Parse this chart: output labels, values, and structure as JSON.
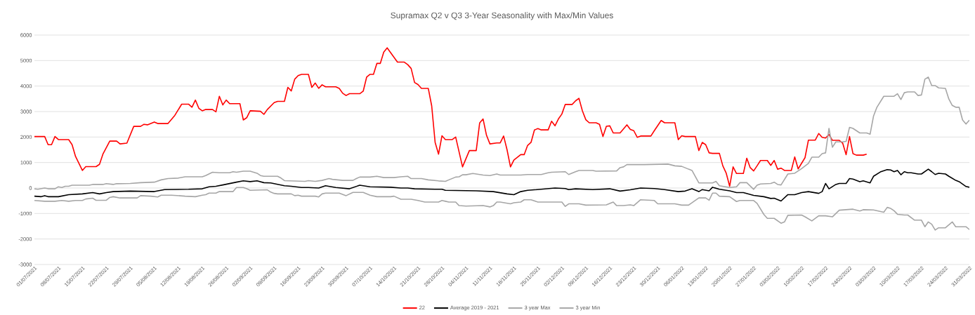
{
  "chart_data": {
    "type": "line",
    "title": "Supramax Q2 v Q3 3-Year Seasonality with Max/Min Values",
    "xlim": [
      "2021-07-01",
      "2022-03-31"
    ],
    "xticks": [
      {
        "value": "2021-07-01",
        "label": "01/07/2021"
      },
      {
        "value": "2021-07-08",
        "label": "08/07/2021"
      },
      {
        "value": "2021-07-15",
        "label": "15/07/2021"
      },
      {
        "value": "2021-07-22",
        "label": "22/07/2021"
      },
      {
        "value": "2021-07-29",
        "label": "29/07/2021"
      },
      {
        "value": "2021-08-05",
        "label": "05/08/2021"
      },
      {
        "value": "2021-08-12",
        "label": "12/08/2021"
      },
      {
        "value": "2021-08-19",
        "label": "19/08/2021"
      },
      {
        "value": "2021-08-26",
        "label": "26/08/2021"
      },
      {
        "value": "2021-09-02",
        "label": "02/09/2021"
      },
      {
        "value": "2021-09-09",
        "label": "09/09/2021"
      },
      {
        "value": "2021-09-16",
        "label": "16/09/2021"
      },
      {
        "value": "2021-09-23",
        "label": "23/09/2021"
      },
      {
        "value": "2021-09-30",
        "label": "30/09/2021"
      },
      {
        "value": "2021-10-07",
        "label": "07/10/2021"
      },
      {
        "value": "2021-10-14",
        "label": "14/10/2021"
      },
      {
        "value": "2021-10-21",
        "label": "21/10/2021"
      },
      {
        "value": "2021-10-28",
        "label": "28/10/2021"
      },
      {
        "value": "2021-11-04",
        "label": "04/11/2021"
      },
      {
        "value": "2021-11-11",
        "label": "11/11/2021"
      },
      {
        "value": "2021-11-18",
        "label": "18/11/2021"
      },
      {
        "value": "2021-11-25",
        "label": "25/11/2021"
      },
      {
        "value": "2021-12-02",
        "label": "02/12/2021"
      },
      {
        "value": "2021-12-09",
        "label": "09/12/2021"
      },
      {
        "value": "2021-12-16",
        "label": "16/12/2021"
      },
      {
        "value": "2021-12-23",
        "label": "23/12/2021"
      },
      {
        "value": "2021-12-30",
        "label": "30/12/2021"
      },
      {
        "value": "2022-01-06",
        "label": "06/01/2022"
      },
      {
        "value": "2022-01-13",
        "label": "13/01/2022"
      },
      {
        "value": "2022-01-20",
        "label": "20/01/2022"
      },
      {
        "value": "2022-01-27",
        "label": "27/01/2022"
      },
      {
        "value": "2022-02-03",
        "label": "03/02/2022"
      },
      {
        "value": "2022-02-10",
        "label": "10/02/2022"
      },
      {
        "value": "2022-02-17",
        "label": "17/02/2022"
      },
      {
        "value": "2022-02-24",
        "label": "24/02/2022"
      },
      {
        "value": "2022-03-03",
        "label": "03/03/2022"
      },
      {
        "value": "2022-03-10",
        "label": "10/03/2022"
      },
      {
        "value": "2022-03-17",
        "label": "17/03/2022"
      },
      {
        "value": "2022-03-24",
        "label": "24/03/2022"
      },
      {
        "value": "2022-03-31",
        "label": "31/03/2022"
      }
    ],
    "ylim": [
      -3000,
      6000
    ],
    "yticks": [
      -3000,
      -2000,
      -1000,
      0,
      1000,
      2000,
      3000,
      4000,
      5000,
      6000
    ],
    "grid": "y",
    "legend": "bottom",
    "marker": "none",
    "line_style": "solid",
    "series": [
      {
        "name": "22",
        "color": "#ff0000",
        "x": [
          "2021-07-01",
          "2021-07-04",
          "2021-07-05",
          "2021-07-06",
          "2021-07-07",
          "2021-07-08",
          "2021-07-11",
          "2021-07-12",
          "2021-07-13",
          "2021-07-15",
          "2021-07-16",
          "2021-07-19",
          "2021-07-20",
          "2021-07-21",
          "2021-07-23",
          "2021-07-25",
          "2021-07-26",
          "2021-07-28",
          "2021-07-30",
          "2021-08-01",
          "2021-08-02",
          "2021-08-03",
          "2021-08-05",
          "2021-08-06",
          "2021-08-09",
          "2021-08-11",
          "2021-08-13",
          "2021-08-15",
          "2021-08-16",
          "2021-08-17",
          "2021-08-18",
          "2021-08-19",
          "2021-08-20",
          "2021-08-22",
          "2021-08-23",
          "2021-08-24",
          "2021-08-25",
          "2021-08-26",
          "2021-08-27",
          "2021-08-30",
          "2021-08-31",
          "2021-09-01",
          "2021-09-02",
          "2021-09-05",
          "2021-09-06",
          "2021-09-07",
          "2021-09-09",
          "2021-09-10",
          "2021-09-12",
          "2021-09-13",
          "2021-09-14",
          "2021-09-15",
          "2021-09-16",
          "2021-09-17",
          "2021-09-19",
          "2021-09-20",
          "2021-09-21",
          "2021-09-22",
          "2021-09-23",
          "2021-09-24",
          "2021-09-27",
          "2021-09-28",
          "2021-09-29",
          "2021-09-30",
          "2021-10-01",
          "2021-10-04",
          "2021-10-05",
          "2021-10-06",
          "2021-10-07",
          "2021-10-08",
          "2021-10-09",
          "2021-10-10",
          "2021-10-11",
          "2021-10-12",
          "2021-10-15",
          "2021-10-17",
          "2021-10-18",
          "2021-10-19",
          "2021-10-20",
          "2021-10-21",
          "2021-10-22",
          "2021-10-24",
          "2021-10-25",
          "2021-10-26",
          "2021-10-27",
          "2021-10-28",
          "2021-10-29",
          "2021-10-31",
          "2021-11-01",
          "2021-11-03",
          "2021-11-05",
          "2021-11-07",
          "2021-11-08",
          "2021-11-09",
          "2021-11-10",
          "2021-11-11",
          "2021-11-13",
          "2021-11-14",
          "2021-11-15",
          "2021-11-16",
          "2021-11-17",
          "2021-11-18",
          "2021-11-20",
          "2021-11-21",
          "2021-11-22",
          "2021-11-23",
          "2021-11-24",
          "2021-11-25",
          "2021-11-26",
          "2021-11-28",
          "2021-11-29",
          "2021-11-30",
          "2021-12-01",
          "2021-12-02",
          "2021-12-03",
          "2021-12-05",
          "2021-12-06",
          "2021-12-07",
          "2021-12-08",
          "2021-12-09",
          "2021-12-10",
          "2021-12-12",
          "2021-12-13",
          "2021-12-14",
          "2021-12-15",
          "2021-12-16",
          "2021-12-17",
          "2021-12-19",
          "2021-12-21",
          "2021-12-22",
          "2021-12-23",
          "2021-12-24",
          "2021-12-25",
          "2021-12-28",
          "2021-12-29",
          "2021-12-31",
          "2022-01-01",
          "2022-01-04",
          "2022-01-05",
          "2022-01-06",
          "2022-01-07",
          "2022-01-10",
          "2022-01-11",
          "2022-01-12",
          "2022-01-13",
          "2022-01-14",
          "2022-01-15",
          "2022-01-17",
          "2022-01-18",
          "2022-01-19",
          "2022-01-20",
          "2022-01-21",
          "2022-01-22",
          "2022-01-24",
          "2022-01-25",
          "2022-01-26",
          "2022-01-27",
          "2022-01-28",
          "2022-01-29",
          "2022-01-31",
          "2022-02-01",
          "2022-02-02",
          "2022-02-03",
          "2022-02-04",
          "2022-02-05",
          "2022-02-07",
          "2022-02-08",
          "2022-02-09",
          "2022-02-10",
          "2022-02-11",
          "2022-02-12",
          "2022-02-14",
          "2022-02-15",
          "2022-02-16",
          "2022-02-17",
          "2022-02-18",
          "2022-02-19",
          "2022-02-21",
          "2022-02-22",
          "2022-02-23",
          "2022-02-24",
          "2022-02-25",
          "2022-02-26",
          "2022-02-28",
          "2022-03-01"
        ],
        "values": [
          2020,
          2020,
          1700,
          1700,
          2020,
          1900,
          1900,
          1700,
          1240,
          690,
          840,
          840,
          930,
          1330,
          1840,
          1840,
          1730,
          1760,
          2420,
          2420,
          2500,
          2480,
          2590,
          2530,
          2530,
          2850,
          3290,
          3290,
          3170,
          3450,
          3130,
          3030,
          3080,
          3080,
          2990,
          3600,
          3260,
          3450,
          3310,
          3310,
          2670,
          2760,
          3030,
          3010,
          2890,
          3080,
          3350,
          3400,
          3400,
          3950,
          3810,
          4270,
          4410,
          4460,
          4460,
          3950,
          4120,
          3910,
          4050,
          3970,
          3970,
          3910,
          3720,
          3630,
          3700,
          3700,
          3800,
          4350,
          4460,
          4460,
          4890,
          4890,
          5330,
          5500,
          4940,
          4940,
          4840,
          4690,
          4140,
          4060,
          3910,
          3910,
          3220,
          1790,
          1330,
          2050,
          1900,
          1900,
          2000,
          830,
          1470,
          1470,
          2550,
          2710,
          2070,
          1730,
          1770,
          1770,
          2040,
          1500,
          830,
          1100,
          1310,
          1310,
          1670,
          1790,
          2280,
          2330,
          2280,
          2280,
          2620,
          2440,
          2710,
          2900,
          3280,
          3280,
          3420,
          3520,
          3030,
          2680,
          2560,
          2560,
          2500,
          2020,
          2420,
          2440,
          2160,
          2160,
          2480,
          2300,
          2250,
          1990,
          2040,
          2040,
          2250,
          2650,
          2560,
          2560,
          1900,
          2050,
          2020,
          2020,
          1470,
          1790,
          1700,
          1380,
          1360,
          1360,
          870,
          580,
          70,
          830,
          570,
          570,
          1170,
          800,
          670,
          870,
          1080,
          1080,
          890,
          1080,
          740,
          780,
          690,
          690,
          1220,
          750,
          970,
          1190,
          1880,
          1880,
          2140,
          1990,
          1960,
          2100,
          1870,
          1870,
          1760,
          1310,
          2020,
          1350,
          1290,
          1290,
          1330
        ]
      },
      {
        "name": "Average 2019 - 2021",
        "color": "#000000",
        "x": [
          "2021-07-01",
          "2021-07-03",
          "2021-07-04",
          "2021-07-05",
          "2021-07-08",
          "2021-07-11",
          "2021-07-15",
          "2021-07-18",
          "2021-07-20",
          "2021-07-22",
          "2021-07-24",
          "2021-07-29",
          "2021-08-05",
          "2021-08-08",
          "2021-08-15",
          "2021-08-19",
          "2021-08-21",
          "2021-08-23",
          "2021-08-25",
          "2021-08-29",
          "2021-08-31",
          "2021-09-02",
          "2021-09-04",
          "2021-09-06",
          "2021-09-08",
          "2021-09-12",
          "2021-09-14",
          "2021-09-17",
          "2021-09-19",
          "2021-09-22",
          "2021-09-24",
          "2021-09-27",
          "2021-10-01",
          "2021-10-04",
          "2021-10-07",
          "2021-10-13",
          "2021-10-16",
          "2021-10-18",
          "2021-10-20",
          "2021-10-26",
          "2021-10-28",
          "2021-10-29",
          "2021-11-07",
          "2021-11-12",
          "2021-11-16",
          "2021-11-18",
          "2021-11-20",
          "2021-11-22",
          "2021-11-24",
          "2021-11-30",
          "2021-12-03",
          "2021-12-04",
          "2021-12-06",
          "2021-12-11",
          "2021-12-16",
          "2021-12-19",
          "2021-12-22",
          "2021-12-25",
          "2021-12-29",
          "2022-01-01",
          "2022-01-05",
          "2022-01-07",
          "2022-01-09",
          "2022-01-11",
          "2022-01-12",
          "2022-01-14",
          "2022-01-15",
          "2022-01-17",
          "2022-01-20",
          "2022-01-22",
          "2022-01-24",
          "2022-01-27",
          "2022-01-30",
          "2022-02-01",
          "2022-02-02",
          "2022-02-04",
          "2022-02-06",
          "2022-02-08",
          "2022-02-10",
          "2022-02-12",
          "2022-02-15",
          "2022-02-16",
          "2022-02-17",
          "2022-02-18",
          "2022-02-20",
          "2022-02-21",
          "2022-02-23",
          "2022-02-24",
          "2022-02-25",
          "2022-02-27",
          "2022-02-28",
          "2022-03-02",
          "2022-03-03",
          "2022-03-05",
          "2022-03-07",
          "2022-03-08",
          "2022-03-09",
          "2022-03-10",
          "2022-03-11",
          "2022-03-12",
          "2022-03-13",
          "2022-03-14",
          "2022-03-16",
          "2022-03-17",
          "2022-03-19",
          "2022-03-20",
          "2022-03-21",
          "2022-03-22",
          "2022-03-24",
          "2022-03-25",
          "2022-03-27",
          "2022-03-28",
          "2022-03-30",
          "2022-03-31"
        ],
        "values": [
          -320,
          -340,
          -300,
          -340,
          -340,
          -260,
          -230,
          -180,
          -230,
          -180,
          -140,
          -120,
          -140,
          -60,
          -50,
          -30,
          50,
          70,
          120,
          230,
          280,
          250,
          280,
          210,
          200,
          90,
          70,
          20,
          20,
          0,
          90,
          20,
          -30,
          110,
          50,
          30,
          0,
          0,
          -30,
          -50,
          -50,
          -90,
          -110,
          -140,
          -230,
          -260,
          -140,
          -90,
          -70,
          0,
          -20,
          -60,
          -30,
          -60,
          -30,
          -120,
          -70,
          0,
          -20,
          -60,
          -140,
          -120,
          -30,
          -140,
          -60,
          -110,
          30,
          -50,
          -110,
          -180,
          -180,
          -290,
          -340,
          -410,
          -400,
          -510,
          -260,
          -260,
          -180,
          -140,
          -210,
          -140,
          180,
          -30,
          140,
          180,
          180,
          370,
          350,
          250,
          280,
          200,
          460,
          630,
          720,
          710,
          640,
          690,
          520,
          640,
          600,
          600,
          550,
          550,
          740,
          640,
          530,
          580,
          550,
          460,
          300,
          250,
          60,
          30
        ]
      },
      {
        "name": "3 year Max",
        "color": "#a6a6a6",
        "x": [
          "2021-07-01",
          "2021-07-02",
          "2021-07-04",
          "2021-07-05",
          "2021-07-07",
          "2021-07-08",
          "2021-07-09",
          "2021-07-10",
          "2021-07-11",
          "2021-07-12",
          "2021-07-17",
          "2021-07-18",
          "2021-07-21",
          "2021-07-22",
          "2021-07-24",
          "2021-07-25",
          "2021-07-29",
          "2021-08-01",
          "2021-08-05",
          "2021-08-07",
          "2021-08-09",
          "2021-08-12",
          "2021-08-14",
          "2021-08-19",
          "2021-08-20",
          "2021-08-22",
          "2021-08-24",
          "2021-08-27",
          "2021-08-28",
          "2021-08-29",
          "2021-08-31",
          "2021-09-02",
          "2021-09-04",
          "2021-09-05",
          "2021-09-06",
          "2021-09-10",
          "2021-09-11",
          "2021-09-12",
          "2021-09-14",
          "2021-09-18",
          "2021-09-19",
          "2021-09-21",
          "2021-09-23",
          "2021-09-25",
          "2021-09-26",
          "2021-09-29",
          "2021-10-02",
          "2021-10-03",
          "2021-10-04",
          "2021-10-07",
          "2021-10-09",
          "2021-10-11",
          "2021-10-14",
          "2021-10-16",
          "2021-10-18",
          "2021-10-19",
          "2021-10-22",
          "2021-10-24",
          "2021-10-27",
          "2021-10-29",
          "2021-10-30",
          "2021-11-01",
          "2021-11-02",
          "2021-11-03",
          "2021-11-04",
          "2021-11-06",
          "2021-11-09",
          "2021-11-11",
          "2021-11-13",
          "2021-11-14",
          "2021-11-20",
          "2021-11-22",
          "2021-11-26",
          "2021-11-28",
          "2021-11-29",
          "2021-12-03",
          "2021-12-04",
          "2021-12-06",
          "2021-12-07",
          "2021-12-11",
          "2021-12-12",
          "2021-12-18",
          "2021-12-19",
          "2021-12-20",
          "2021-12-21",
          "2021-12-26",
          "2022-01-02",
          "2022-01-04",
          "2022-01-06",
          "2022-01-08",
          "2022-01-09",
          "2022-01-11",
          "2022-01-15",
          "2022-01-16",
          "2022-01-17",
          "2022-01-20",
          "2022-01-22",
          "2022-01-23",
          "2022-01-25",
          "2022-01-27",
          "2022-01-28",
          "2022-01-29",
          "2022-02-01",
          "2022-02-02",
          "2022-02-03",
          "2022-02-04",
          "2022-02-06",
          "2022-02-08",
          "2022-02-10",
          "2022-02-12",
          "2022-02-13",
          "2022-02-15",
          "2022-02-16",
          "2022-02-17",
          "2022-02-18",
          "2022-02-19",
          "2022-02-20",
          "2022-02-22",
          "2022-02-23",
          "2022-02-24",
          "2022-02-25",
          "2022-02-26",
          "2022-02-27",
          "2022-03-01",
          "2022-03-02",
          "2022-03-03",
          "2022-03-04",
          "2022-03-06",
          "2022-03-09",
          "2022-03-10",
          "2022-03-11",
          "2022-03-12",
          "2022-03-13",
          "2022-03-15",
          "2022-03-16",
          "2022-03-17",
          "2022-03-18",
          "2022-03-19",
          "2022-03-20",
          "2022-03-21",
          "2022-03-22",
          "2022-03-24",
          "2022-03-25",
          "2022-03-26",
          "2022-03-27",
          "2022-03-28",
          "2022-03-29",
          "2022-03-30",
          "2022-03-31"
        ],
        "values": [
          -30,
          -50,
          0,
          -30,
          -30,
          50,
          20,
          70,
          70,
          110,
          110,
          140,
          140,
          170,
          140,
          170,
          180,
          210,
          230,
          320,
          370,
          390,
          440,
          440,
          490,
          620,
          600,
          600,
          640,
          620,
          660,
          660,
          580,
          490,
          460,
          460,
          390,
          290,
          280,
          260,
          290,
          260,
          300,
          370,
          340,
          300,
          300,
          370,
          430,
          430,
          460,
          410,
          410,
          440,
          460,
          370,
          370,
          320,
          280,
          260,
          320,
          430,
          440,
          520,
          520,
          570,
          510,
          490,
          550,
          510,
          510,
          530,
          530,
          600,
          620,
          640,
          530,
          640,
          690,
          690,
          660,
          670,
          800,
          830,
          920,
          920,
          940,
          870,
          850,
          740,
          690,
          200,
          200,
          260,
          90,
          20,
          50,
          210,
          210,
          -50,
          110,
          160,
          180,
          230,
          140,
          120,
          550,
          580,
          760,
          970,
          1210,
          1210,
          1350,
          1380,
          2340,
          1600,
          1810,
          1810,
          1830,
          2380,
          2340,
          2250,
          2160,
          2160,
          2110,
          2820,
          3170,
          3600,
          3600,
          3700,
          3470,
          3740,
          3770,
          3770,
          3630,
          3650,
          4270,
          4350,
          4020,
          4020,
          3930,
          3910,
          3490,
          3240,
          3170,
          3170,
          2670,
          2510,
          2660
        ]
      },
      {
        "name": "3 year Min",
        "color": "#a6a6a6",
        "x": [
          "2021-07-01",
          "2021-07-04",
          "2021-07-07",
          "2021-07-09",
          "2021-07-11",
          "2021-07-13",
          "2021-07-15",
          "2021-07-16",
          "2021-07-18",
          "2021-07-19",
          "2021-07-22",
          "2021-07-23",
          "2021-07-24",
          "2021-07-26",
          "2021-07-31",
          "2021-08-01",
          "2021-08-04",
          "2021-08-06",
          "2021-08-07",
          "2021-08-10",
          "2021-08-12",
          "2021-08-14",
          "2021-08-17",
          "2021-08-19",
          "2021-08-20",
          "2021-08-21",
          "2021-08-23",
          "2021-08-24",
          "2021-08-28",
          "2021-08-29",
          "2021-08-31",
          "2021-09-01",
          "2021-09-02",
          "2021-09-07",
          "2021-09-08",
          "2021-09-09",
          "2021-09-10",
          "2021-09-14",
          "2021-09-15",
          "2021-09-16",
          "2021-09-17",
          "2021-09-21",
          "2021-09-22",
          "2021-09-23",
          "2021-09-24",
          "2021-09-28",
          "2021-09-30",
          "2021-10-02",
          "2021-10-05",
          "2021-10-07",
          "2021-10-09",
          "2021-10-13",
          "2021-10-14",
          "2021-10-16",
          "2021-10-19",
          "2021-10-21",
          "2021-10-23",
          "2021-10-27",
          "2021-10-28",
          "2021-10-29",
          "2021-10-30",
          "2021-11-01",
          "2021-11-02",
          "2021-11-04",
          "2021-11-09",
          "2021-11-11",
          "2021-11-12",
          "2021-11-13",
          "2021-11-14",
          "2021-11-17",
          "2021-11-18",
          "2021-11-20",
          "2021-11-21",
          "2021-11-23",
          "2021-11-25",
          "2021-12-02",
          "2021-12-03",
          "2021-12-04",
          "2021-12-07",
          "2021-12-09",
          "2021-12-15",
          "2021-12-17",
          "2021-12-18",
          "2021-12-20",
          "2021-12-22",
          "2021-12-23",
          "2021-12-25",
          "2021-12-29",
          "2021-12-30",
          "2022-01-04",
          "2022-01-06",
          "2022-01-08",
          "2022-01-11",
          "2022-01-13",
          "2022-01-14",
          "2022-01-15",
          "2022-01-16",
          "2022-01-17",
          "2022-01-20",
          "2022-01-22",
          "2022-01-23",
          "2022-01-27",
          "2022-01-28",
          "2022-01-30",
          "2022-01-31",
          "2022-02-02",
          "2022-02-04",
          "2022-02-05",
          "2022-02-06",
          "2022-02-10",
          "2022-02-11",
          "2022-02-13",
          "2022-02-15",
          "2022-02-17",
          "2022-02-19",
          "2022-02-21",
          "2022-02-25",
          "2022-02-27",
          "2022-02-28",
          "2022-03-03",
          "2022-03-06",
          "2022-03-07",
          "2022-03-08",
          "2022-03-09",
          "2022-03-10",
          "2022-03-12",
          "2022-03-13",
          "2022-03-15",
          "2022-03-17",
          "2022-03-18",
          "2022-03-19",
          "2022-03-20",
          "2022-03-21",
          "2022-03-22",
          "2022-03-24",
          "2022-03-26",
          "2022-03-27",
          "2022-03-30",
          "2022-03-31"
        ],
        "values": [
          -490,
          -520,
          -520,
          -490,
          -520,
          -490,
          -490,
          -430,
          -400,
          -480,
          -480,
          -370,
          -340,
          -390,
          -390,
          -300,
          -320,
          -350,
          -280,
          -280,
          -300,
          -320,
          -340,
          -280,
          -260,
          -200,
          -200,
          -140,
          -140,
          20,
          20,
          -30,
          -90,
          -70,
          -160,
          -210,
          -230,
          -230,
          -300,
          -280,
          -320,
          -320,
          -350,
          -230,
          -200,
          -200,
          -300,
          -170,
          -170,
          -280,
          -340,
          -340,
          -320,
          -440,
          -440,
          -490,
          -550,
          -550,
          -490,
          -520,
          -550,
          -550,
          -690,
          -710,
          -690,
          -740,
          -690,
          -550,
          -550,
          -620,
          -580,
          -550,
          -460,
          -460,
          -550,
          -550,
          -720,
          -620,
          -620,
          -670,
          -660,
          -550,
          -690,
          -690,
          -660,
          -690,
          -460,
          -490,
          -620,
          -620,
          -670,
          -670,
          -390,
          -390,
          -480,
          -200,
          -200,
          -320,
          -340,
          -530,
          -490,
          -490,
          -600,
          -1040,
          -1190,
          -1190,
          -1380,
          -1330,
          -1070,
          -1060,
          -1130,
          -1290,
          -1090,
          -1090,
          -1130,
          -870,
          -830,
          -900,
          -850,
          -860,
          -950,
          -760,
          -800,
          -890,
          -1030,
          -1060,
          -1060,
          -1260,
          -1260,
          -1520,
          -1330,
          -1420,
          -1650,
          -1560,
          -1560,
          -1330,
          -1520,
          -1520,
          -1630
        ]
      }
    ]
  }
}
